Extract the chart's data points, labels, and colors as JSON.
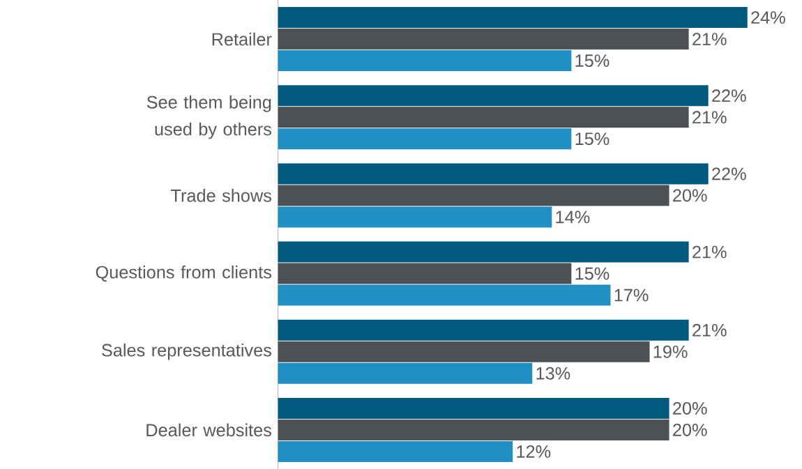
{
  "chart_data": {
    "type": "bar",
    "orientation": "horizontal",
    "categories": [
      "Retailer",
      "See them being used by others",
      "Trade shows",
      "Questions from clients",
      "Sales representatives",
      "Dealer websites"
    ],
    "series": [
      {
        "color": "#005a7d",
        "values": [
          24,
          22,
          22,
          21,
          21,
          20
        ],
        "value_labels": [
          "24%",
          "22%",
          "22%",
          "21%",
          "21%",
          "20%"
        ]
      },
      {
        "color": "#4d5055",
        "values": [
          21,
          21,
          20,
          15,
          19,
          20
        ],
        "value_labels": [
          "21%",
          "21%",
          "20%",
          "15%",
          "19%",
          "20%"
        ]
      },
      {
        "color": "#1f8fc4",
        "values": [
          15,
          15,
          14,
          17,
          13,
          12
        ],
        "value_labels": [
          "15%",
          "15%",
          "14%",
          "17%",
          "13%",
          "12%"
        ]
      }
    ]
  }
}
